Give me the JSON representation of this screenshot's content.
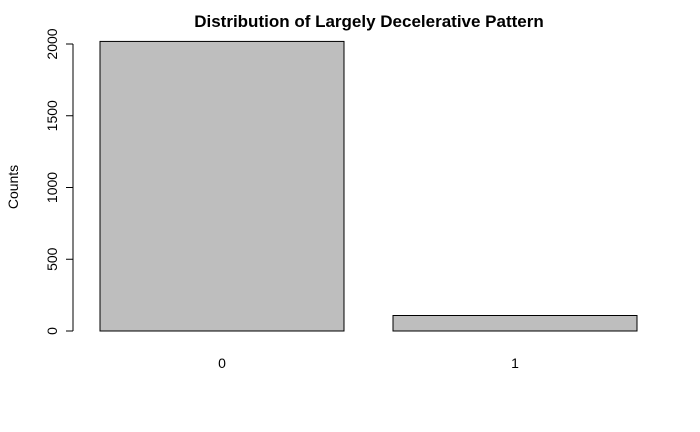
{
  "chart_data": {
    "type": "bar",
    "title": "Distribution of Largely Decelerative Pattern",
    "ylabel": "Counts",
    "xlabel": "",
    "categories": [
      "0",
      "1"
    ],
    "values": [
      2018,
      108
    ],
    "ylim": [
      0,
      2000
    ],
    "yticks": [
      0,
      500,
      1000,
      1500,
      2000
    ],
    "bar_color": "#bebebe",
    "grid": false,
    "legend": "none"
  }
}
